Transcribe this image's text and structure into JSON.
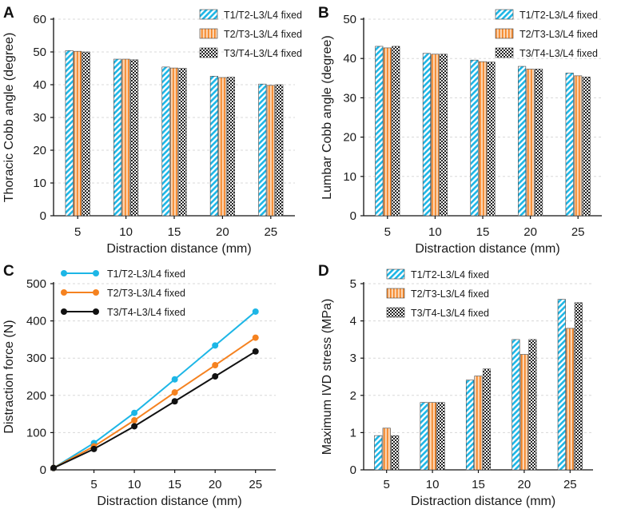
{
  "colors": {
    "s1": "#1db6e6",
    "s2": "#f58220",
    "s3": "#111111"
  },
  "chart_data": [
    {
      "panel_label": "A",
      "type": "bar",
      "xlabel": "Distraction distance (mm)",
      "ylabel": "Thoracic Cobb angle (degree)",
      "categories": [
        "5",
        "10",
        "15",
        "20",
        "25"
      ],
      "ylim": [
        0,
        60
      ],
      "yticks": [
        "0",
        "10",
        "20",
        "30",
        "40",
        "50",
        "60"
      ],
      "legend_position": "top-right",
      "series": [
        {
          "name": "T1/T2-L3/L4 fixed",
          "pattern": "diagonal-hatch-cyan",
          "values": [
            50.4,
            47.8,
            45.4,
            42.6,
            40.2
          ]
        },
        {
          "name": "T2/T3-L3/L4 fixed",
          "pattern": "stripe-orange",
          "values": [
            50.2,
            47.8,
            45.1,
            42.2,
            39.8
          ]
        },
        {
          "name": "T3/T4-L3/L4 fixed",
          "pattern": "checker-black",
          "values": [
            50.0,
            47.6,
            45.0,
            42.3,
            40.0
          ]
        }
      ]
    },
    {
      "panel_label": "B",
      "type": "bar",
      "xlabel": "Distraction distance (mm)",
      "ylabel": "Lumbar Cobb angle (degree)",
      "categories": [
        "5",
        "10",
        "15",
        "20",
        "25"
      ],
      "ylim": [
        0,
        50
      ],
      "yticks": [
        "0",
        "10",
        "20",
        "30",
        "40",
        "50"
      ],
      "legend_position": "top-right",
      "series": [
        {
          "name": "T1/T2-L3/L4 fixed",
          "pattern": "diagonal-hatch-cyan",
          "values": [
            43.1,
            41.3,
            39.6,
            38.0,
            36.3
          ]
        },
        {
          "name": "T2/T3-L3/L4 fixed",
          "pattern": "stripe-orange",
          "values": [
            42.7,
            41.1,
            39.2,
            37.3,
            35.6
          ]
        },
        {
          "name": "T3/T4-L3/L4 fixed",
          "pattern": "checker-black",
          "values": [
            43.1,
            41.1,
            39.1,
            37.3,
            35.3
          ]
        }
      ]
    },
    {
      "panel_label": "C",
      "type": "line",
      "xlabel": "Distraction distance (mm)",
      "ylabel": "Distraction force (N)",
      "x": [
        0,
        5,
        10,
        15,
        20,
        25
      ],
      "xticks": [
        "5",
        "10",
        "15",
        "20",
        "25"
      ],
      "xlim": [
        0,
        27.5
      ],
      "ylim": [
        0,
        500
      ],
      "yticks": [
        "0",
        "100",
        "200",
        "300",
        "400",
        "500"
      ],
      "legend_position": "top-left",
      "series": [
        {
          "name": "T1/T2-L3/L4 fixed",
          "color": "#1db6e6",
          "values": [
            5,
            72,
            153,
            243,
            334,
            425
          ]
        },
        {
          "name": "T2/T3-L3/L4 fixed",
          "color": "#f58220",
          "values": [
            5,
            63,
            133,
            208,
            281,
            355
          ]
        },
        {
          "name": "T3/T4-L3/L4 fixed",
          "color": "#111111",
          "values": [
            5,
            56,
            117,
            184,
            251,
            318
          ]
        }
      ]
    },
    {
      "panel_label": "D",
      "type": "bar",
      "xlabel": "Distraction distance (mm)",
      "ylabel": "Maximum IVD stress (MPa)",
      "categories": [
        "5",
        "10",
        "15",
        "20",
        "25"
      ],
      "ylim": [
        0,
        5
      ],
      "yticks": [
        "0",
        "1",
        "2",
        "3",
        "4",
        "5"
      ],
      "legend_position": "top-left",
      "series": [
        {
          "name": "T1/T2-L3/L4 fixed",
          "pattern": "diagonal-hatch-cyan",
          "values": [
            0.92,
            1.81,
            2.41,
            3.5,
            4.58
          ]
        },
        {
          "name": "T2/T3-L3/L4 fixed",
          "pattern": "stripe-orange",
          "values": [
            1.12,
            1.81,
            2.52,
            3.1,
            3.8
          ]
        },
        {
          "name": "T3/T4-L3/L4 fixed",
          "pattern": "checker-black",
          "values": [
            0.92,
            1.81,
            2.71,
            3.5,
            4.49
          ]
        }
      ]
    }
  ]
}
